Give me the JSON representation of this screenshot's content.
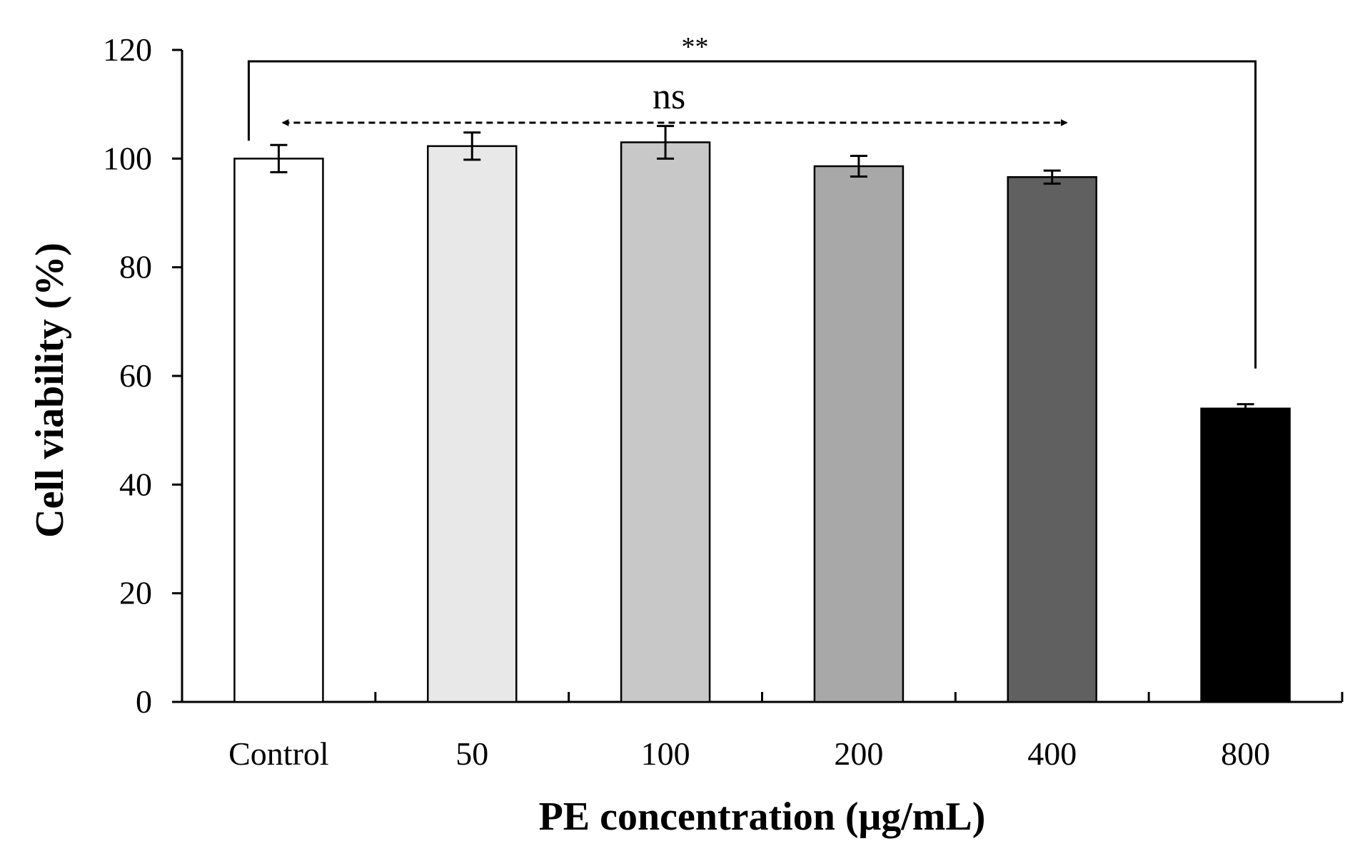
{
  "chart_data": {
    "type": "bar",
    "title": "",
    "xlabel": "PE concentration (μg/mL)",
    "ylabel": "Cell viability (%)",
    "ylim": [
      0,
      120
    ],
    "yticks": [
      0,
      20,
      40,
      60,
      80,
      100,
      120
    ],
    "ytick_labels": [
      "0",
      "20",
      "40",
      "60",
      "80",
      "100",
      "120"
    ],
    "grid": false,
    "legend": "none",
    "categories": [
      "Control",
      "50",
      "100",
      "200",
      "400",
      "800"
    ],
    "values": [
      100,
      102.3,
      103,
      98.6,
      96.6,
      54
    ],
    "errors": [
      2.5,
      2.5,
      3.0,
      1.9,
      1.2,
      0.8
    ],
    "bar_colors": [
      "#ffffff",
      "#e8e8e8",
      "#c8c8c8",
      "#a8a8a8",
      "#606060",
      "#000000"
    ],
    "annotations": [
      {
        "text": "**",
        "from": "Control",
        "to": "800",
        "type": "bracket"
      },
      {
        "text": "ns",
        "from": "Control",
        "to": "400",
        "type": "dashed-double-arrow"
      }
    ]
  }
}
